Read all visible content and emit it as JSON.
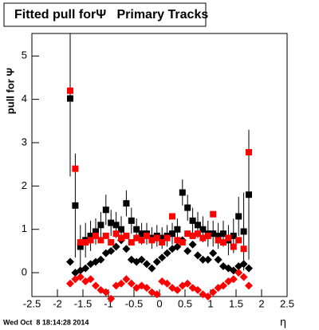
{
  "chart_data": {
    "type": "scatter",
    "title": "Fitted pull forΨ   Primary Tracks",
    "y_label": "pull for Ψ",
    "x_label": "η",
    "timestamp": "Wed Oct  8 18:14:28 2014",
    "xlim": [
      -2.5,
      2.5
    ],
    "ylim": [
      -0.55,
      5.52
    ],
    "xticks": [
      -2.5,
      -2,
      -1.5,
      -1,
      -0.5,
      0,
      0.5,
      1,
      1.5,
      2,
      2.5
    ],
    "yticks": [
      0,
      1,
      2,
      3,
      4,
      5
    ],
    "x": [
      -1.75,
      -1.65,
      -1.55,
      -1.45,
      -1.35,
      -1.25,
      -1.15,
      -1.05,
      -0.95,
      -0.85,
      -0.75,
      -0.65,
      -0.55,
      -0.45,
      -0.35,
      -0.25,
      -0.15,
      -0.05,
      0.05,
      0.15,
      0.25,
      0.35,
      0.45,
      0.55,
      0.65,
      0.75,
      0.85,
      0.95,
      1.05,
      1.15,
      1.25,
      1.35,
      1.45,
      1.55,
      1.65,
      1.75
    ],
    "series": [
      {
        "color": "#000000",
        "marker": "square",
        "values": [
          4.02,
          1.55,
          0.6,
          0.75,
          0.85,
          0.95,
          1.1,
          1.45,
          1.15,
          1.1,
          1.0,
          1.6,
          1.2,
          1.0,
          0.9,
          0.9,
          0.8,
          0.85,
          0.8,
          0.85,
          0.9,
          1.0,
          1.85,
          1.5,
          1.2,
          1.1,
          1.0,
          0.9,
          0.9,
          0.85,
          0.9,
          0.75,
          0.85,
          1.3,
          0.95,
          1.8
        ],
        "errors": [
          1.8,
          1.2,
          0.5,
          0.4,
          0.35,
          0.3,
          0.3,
          0.35,
          0.3,
          0.3,
          0.3,
          0.3,
          0.3,
          0.25,
          0.25,
          0.25,
          0.25,
          0.25,
          0.25,
          0.25,
          0.25,
          0.25,
          0.3,
          0.3,
          0.3,
          0.3,
          0.3,
          0.3,
          0.3,
          0.3,
          0.3,
          0.35,
          0.4,
          0.45,
          0.9,
          1.5
        ]
      },
      {
        "color": "#000000",
        "marker": "diamond",
        "values": [
          0.25,
          0.0,
          0.05,
          0.1,
          0.2,
          0.25,
          0.3,
          0.45,
          0.5,
          0.6,
          0.75,
          0.55,
          0.3,
          0.25,
          0.3,
          0.2,
          0.1,
          0.25,
          0.35,
          0.45,
          0.55,
          0.6,
          0.75,
          0.5,
          0.65,
          0.4,
          0.3,
          0.3,
          0.45,
          0.3,
          0.15,
          0.1,
          0.05,
          0.15,
          0.2,
          0.1
        ]
      },
      {
        "color": "#ff0000",
        "marker": "diamond",
        "values": [
          -0.25,
          -0.15,
          -0.1,
          -0.2,
          -0.15,
          -0.3,
          -0.4,
          -0.45,
          -0.6,
          -0.3,
          -0.25,
          -0.15,
          -0.25,
          -0.35,
          -0.3,
          -0.35,
          -0.45,
          -0.5,
          -0.2,
          -0.25,
          -0.35,
          -0.4,
          -0.3,
          -0.25,
          -0.35,
          -0.4,
          -0.5,
          -0.55,
          -0.45,
          -0.35,
          -0.3,
          -0.2,
          -0.15,
          0.0,
          -0.1,
          -0.3
        ]
      },
      {
        "color": "#ff0000",
        "marker": "square",
        "values": [
          4.2,
          2.4,
          0.7,
          0.7,
          0.75,
          0.85,
          0.75,
          0.85,
          0.7,
          0.9,
          0.8,
          0.85,
          0.7,
          0.8,
          0.75,
          0.85,
          0.75,
          0.8,
          0.7,
          0.8,
          1.3,
          0.75,
          0.7,
          0.9,
          0.85,
          0.9,
          0.8,
          0.85,
          1.35,
          0.75,
          0.7,
          0.8,
          0.6,
          0.75,
          0.55,
          2.78
        ]
      }
    ]
  }
}
